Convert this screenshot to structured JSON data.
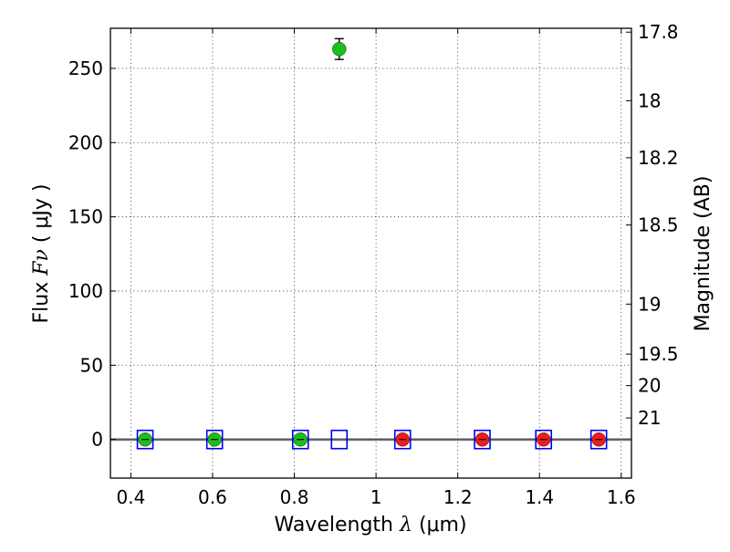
{
  "chart_data": {
    "type": "scatter",
    "title": "",
    "xlabel_text": "Wavelength",
    "xlabel_symbol": "λ",
    "xlabel_unit": "(μm)",
    "ylabel_text": "Flux",
    "ylabel_symbol": "Fν",
    "ylabel_unit": "( μJy )",
    "y2label": "Magnitude (AB)",
    "xlim": [
      0.35,
      1.625
    ],
    "ylim": [
      -26,
      277
    ],
    "x_ticks": [
      0.4,
      0.6,
      0.8,
      1.0,
      1.2,
      1.4,
      1.6
    ],
    "x_tick_labels": [
      "0.4",
      "0.6",
      "0.8",
      "1",
      "1.2",
      "1.4",
      "1.6"
    ],
    "y_ticks": [
      0,
      50,
      100,
      150,
      200,
      250
    ],
    "y_tick_labels": [
      "0",
      "50",
      "100",
      "150",
      "200",
      "250"
    ],
    "y2_ticks": [
      {
        "flux": 274.4,
        "label": "17.8"
      },
      {
        "flux": 228.2,
        "label": "18"
      },
      {
        "flux": 189.8,
        "label": "18.2"
      },
      {
        "flux": 144.5,
        "label": "18.5"
      },
      {
        "flux": 91.2,
        "label": "19"
      },
      {
        "flux": 57.5,
        "label": "19.5"
      },
      {
        "flux": 36.3,
        "label": "20"
      },
      {
        "flux": 14.5,
        "label": "21"
      }
    ],
    "grid": true,
    "zero_line": 0,
    "series": [
      {
        "name": "green points",
        "color": "#1bbf1b",
        "x": [
          0.435,
          0.605,
          0.815,
          0.91
        ],
        "y": [
          0,
          0,
          0,
          263
        ],
        "yerr": [
          0,
          0,
          0,
          7
        ]
      },
      {
        "name": "red points",
        "color": "#ee1c1c",
        "x": [
          1.065,
          1.26,
          1.41,
          1.545
        ],
        "y": [
          0,
          0,
          0,
          0
        ],
        "yerr": [
          0,
          0,
          0,
          0
        ]
      },
      {
        "name": "blue squares",
        "color": "#0000ee",
        "marker": "square-open",
        "x": [
          0.435,
          0.605,
          0.815,
          0.91,
          1.065,
          1.26,
          1.41,
          1.545
        ],
        "y": [
          0,
          0,
          0,
          0,
          0,
          0,
          0,
          0
        ]
      }
    ]
  }
}
